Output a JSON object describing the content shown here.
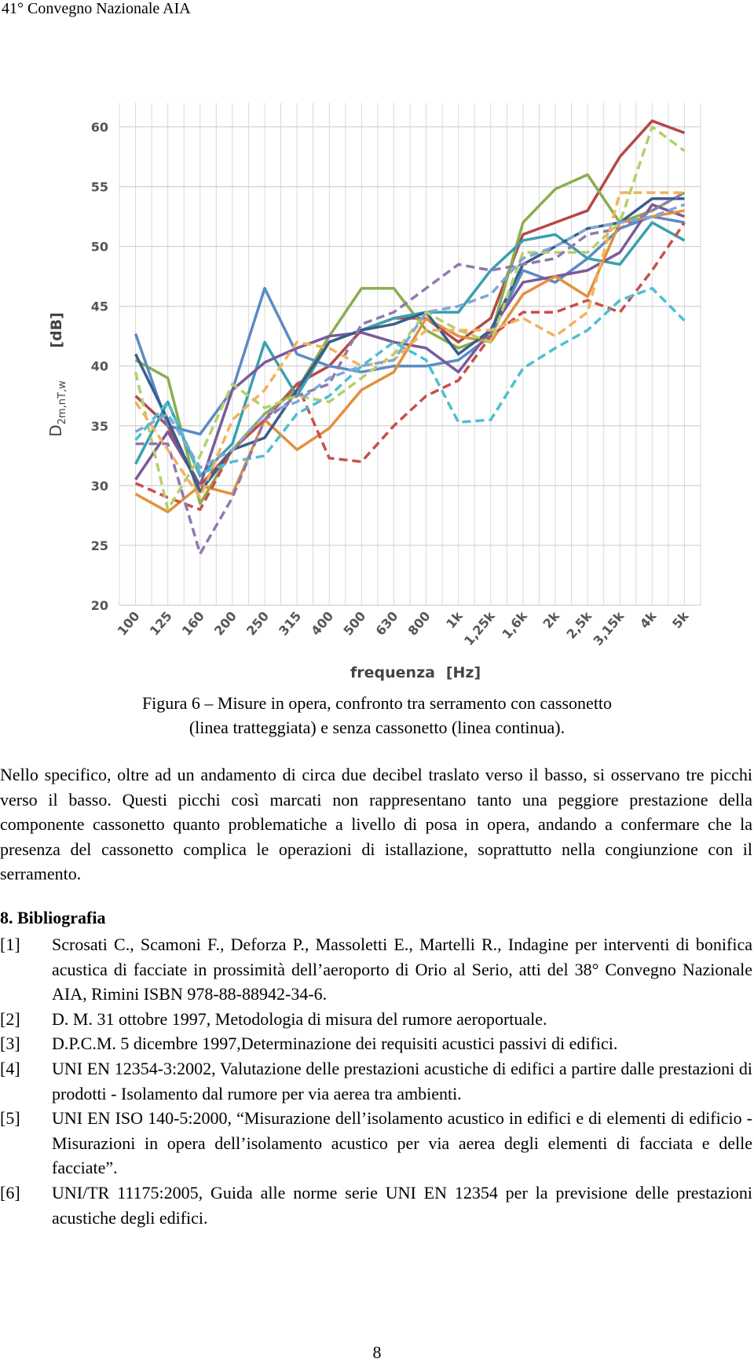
{
  "header": {
    "title": "41° Convegno Nazionale AIA"
  },
  "chart_data": {
    "type": "line",
    "y_label": "D",
    "y_label_sub": "2m,nT,w",
    "y_unit": "[dB]",
    "x_label": "frequenza",
    "x_unit": "[Hz]",
    "categories": [
      "100",
      "125",
      "160",
      "200",
      "250",
      "315",
      "400",
      "500",
      "630",
      "800",
      "1k",
      "1,25k",
      "1,6k",
      "2k",
      "2,5k",
      "3,15k",
      "4k",
      "5k"
    ],
    "ylim": [
      20,
      62
    ],
    "yticks": [
      20,
      25,
      30,
      35,
      40,
      45,
      50,
      55,
      60
    ],
    "grid": true,
    "series": [
      {
        "color": "#b5484a",
        "dashed": false,
        "values": [
          37.5,
          35,
          30,
          33,
          35.5,
          38.5,
          40,
          43,
          44,
          44,
          42,
          44,
          51,
          52,
          53,
          57.5,
          60.5,
          59.5
        ]
      },
      {
        "color": "#8aae4e",
        "dashed": false,
        "values": [
          40.5,
          39,
          28.5,
          33,
          36,
          38,
          42.5,
          46.5,
          46.5,
          43,
          41.5,
          42.5,
          52,
          54.8,
          56,
          52,
          53,
          54.5
        ]
      },
      {
        "color": "#5b8bc4",
        "dashed": false,
        "values": [
          42.7,
          35,
          34.3,
          38,
          46.5,
          41,
          40,
          39.5,
          40,
          40,
          40.5,
          42.5,
          48,
          47,
          49,
          51.5,
          52.5,
          52
        ]
      },
      {
        "color": "#3aa0b0",
        "dashed": false,
        "values": [
          31.8,
          37,
          30.8,
          33.5,
          42,
          37.5,
          42,
          43,
          44,
          44.5,
          44.5,
          48,
          50.5,
          51,
          49,
          48.5,
          52,
          50.5
        ]
      },
      {
        "color": "#7b5a9c",
        "dashed": false,
        "values": [
          30.5,
          34.5,
          30,
          38,
          40.3,
          41.5,
          42.5,
          42.8,
          42,
          41.5,
          39.5,
          43,
          47,
          47.5,
          48,
          49.5,
          53.5,
          52.5
        ]
      },
      {
        "color": "#e1913e",
        "dashed": false,
        "values": [
          29.3,
          27.8,
          30,
          29.3,
          35.5,
          33,
          34.8,
          38,
          39.5,
          44,
          42.5,
          42,
          46,
          47.5,
          45.8,
          52,
          52.5,
          53
        ]
      },
      {
        "color": "#3b5d8c",
        "dashed": false,
        "values": [
          41,
          35.5,
          29.5,
          33,
          34,
          38,
          42,
          43,
          43.5,
          44.5,
          41,
          43,
          48.5,
          50,
          51.5,
          52,
          54,
          54
        ]
      },
      {
        "color": "#c8504c",
        "dashed": true,
        "values": [
          30.2,
          29,
          28,
          33,
          35.5,
          38.5,
          32.3,
          32,
          35,
          37.5,
          38.8,
          42.5,
          44.5,
          44.5,
          45.5,
          44.5,
          48,
          52
        ]
      },
      {
        "color": "#b5cf6a",
        "dashed": true,
        "values": [
          39.5,
          28,
          32.5,
          38.5,
          36.5,
          37.5,
          37,
          39,
          41,
          44.5,
          43,
          42,
          49.5,
          49.5,
          49.5,
          52,
          60,
          58
        ]
      },
      {
        "color": "#4cc0d0",
        "dashed": true,
        "values": [
          33.8,
          37,
          31,
          32,
          32.5,
          36,
          37.5,
          40,
          42,
          40.5,
          35.3,
          35.5,
          39.8,
          41.5,
          43,
          45.5,
          46.5,
          43.8
        ]
      },
      {
        "color": "#9377b0",
        "dashed": true,
        "values": [
          33.5,
          33.5,
          24.3,
          29,
          35.5,
          37.5,
          38.5,
          43.5,
          44.5,
          46.5,
          48.5,
          48,
          48.5,
          49,
          51,
          51.5,
          53,
          54.5
        ]
      },
      {
        "color": "#f4b15e",
        "dashed": true,
        "values": [
          37,
          33,
          29,
          35.5,
          38,
          42,
          41.5,
          40,
          40.5,
          43,
          43,
          43,
          44,
          42.5,
          44.5,
          54.5,
          54.5,
          54.5
        ]
      },
      {
        "color": "#7ea8d8",
        "dashed": true,
        "values": [
          34.5,
          36,
          31.5,
          33,
          36,
          37,
          39,
          40,
          40.5,
          44.5,
          45,
          46,
          49,
          50,
          51.5,
          52,
          52.5,
          53.5
        ]
      }
    ]
  },
  "caption": [
    "Figura 6 – Misure in opera, confronto tra serramento con cassonetto",
    "(linea tratteggiata) e senza cassonetto (linea continua)."
  ],
  "paragraph": "Nello specifico, oltre ad un andamento di circa due decibel traslato verso il basso, si osservano tre picchi verso il basso. Questi picchi così marcati non rappresentano tanto una peggiore prestazione della componente cassonetto quanto problematiche a livello di posa in opera, andando a confermare che la presenza del cassonetto complica le operazioni di istallazione, soprattutto nella congiunzione con il serramento.",
  "section": {
    "title": "8. Bibliografia",
    "references": [
      {
        "num": "[1]",
        "text": "Scrosati C., Scamoni F., Deforza P., Massoletti E., Martelli R., Indagine per interventi di bonifica acustica di facciate in prossimità dell’aeroporto di Orio al Serio, atti del 38° Convegno Nazionale AIA, Rimini ISBN 978-88-88942-34-6."
      },
      {
        "num": "[2]",
        "text": "D. M. 31 ottobre 1997, Metodologia di misura del rumore aeroportuale."
      },
      {
        "num": "[3]",
        "text": "D.P.C.M. 5 dicembre 1997,Determinazione dei requisiti acustici passivi di edifici."
      },
      {
        "num": "[4]",
        "text": "UNI EN 12354-3:2002, Valutazione delle prestazioni acustiche di edifici a partire dalle prestazioni di prodotti - Isolamento dal rumore per via aerea tra ambienti."
      },
      {
        "num": "[5]",
        "text": "UNI EN ISO 140-5:2000, “Misurazione dell’isolamento acustico in edifici e di elementi di edificio - Misurazioni in opera dell’isolamento acustico per via aerea degli elementi di facciata e delle facciate”."
      },
      {
        "num": "[6]",
        "text": "UNI/TR 11175:2005, Guida alle norme serie UNI EN 12354 per la previsione delle prestazioni acustiche degli edifici."
      }
    ]
  },
  "page_number": "8"
}
